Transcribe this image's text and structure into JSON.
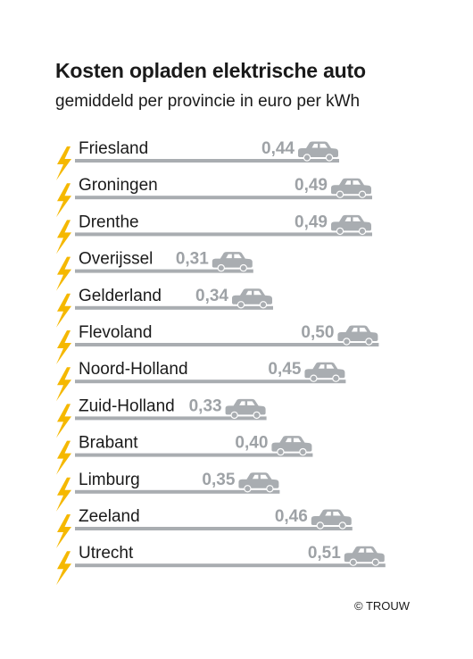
{
  "chart_data": {
    "type": "bar",
    "title": "Kosten opladen elektrische auto",
    "subtitle": "gemiddeld per provincie in euro per kWh",
    "categories": [
      "Friesland",
      "Groningen",
      "Drenthe",
      "Overijssel",
      "Gelderland",
      "Flevoland",
      "Noord-Holland",
      "Zuid-Holland",
      "Brabant",
      "Limburg",
      "Zeeland",
      "Utrecht"
    ],
    "values": [
      0.44,
      0.49,
      0.49,
      0.31,
      0.34,
      0.5,
      0.45,
      0.33,
      0.4,
      0.35,
      0.46,
      0.51
    ],
    "value_labels": [
      "0,44",
      "0,49",
      "0,49",
      "0,31",
      "0,34",
      "0,50",
      "0,45",
      "0,33",
      "0,40",
      "0,35",
      "0,46",
      "0,51"
    ],
    "xlabel": "",
    "ylabel": "",
    "orientation": "horizontal",
    "grid": false,
    "legend": "none",
    "colors": {
      "bar": "#a9adb1",
      "label": "#9ea2a6",
      "text": "#1a1a1a",
      "bolt": "#f5b800"
    },
    "icons": {
      "row_icon": "lightning-bolt-icon",
      "bar_end_icon": "car-icon"
    }
  },
  "credit": "© TROUW"
}
